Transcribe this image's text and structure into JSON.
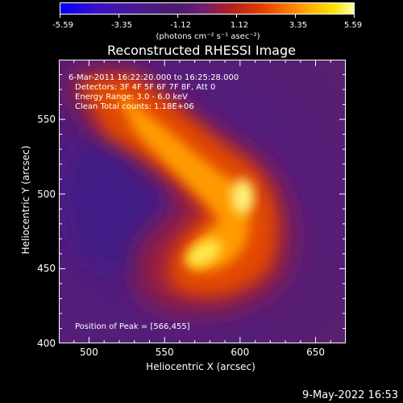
{
  "colorbar": {
    "ticks": [
      "-5.59",
      "-3.35",
      "-1.12",
      "1.12",
      "3.35",
      "5.59"
    ],
    "units": "(photons cm⁻² s⁻¹ asec⁻²)"
  },
  "chart_data": {
    "type": "heatmap",
    "title": "Reconstructed RHESSI Image",
    "xlabel": "Heliocentric X (arcsec)",
    "ylabel": "Heliocentric Y (arcsec)",
    "xlim": [
      480,
      670
    ],
    "ylim": [
      400,
      590
    ],
    "xticks": [
      "500",
      "550",
      "600",
      "650"
    ],
    "yticks": [
      "400",
      "450",
      "500",
      "550"
    ],
    "info_lines": [
      "6-Mar-2011 16:22:20.000 to 16:25:28.000",
      "Detectors: 3F 4F 5F 6F 7F 8F, Att 0",
      "Energy Range: 3.0 - 6.0 keV",
      "Clean     Total counts: 1.18E+06"
    ],
    "peak_label": "Position of Peak = [566,455]",
    "peak": [
      566,
      455
    ],
    "colorbar_range": [
      -5.59,
      5.59
    ]
  },
  "footer": {
    "date": "9-May-2022 16:53"
  }
}
